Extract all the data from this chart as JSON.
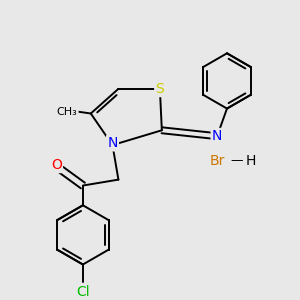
{
  "background_color": "#e8e8e8",
  "figsize": [
    3.0,
    3.0
  ],
  "dpi": 100,
  "atom_colors": {
    "S": "#cccc00",
    "N": "#0000ff",
    "O": "#ff0000",
    "Cl": "#00bb00",
    "Br": "#cc7700",
    "C": "#000000",
    "H": "#000000"
  },
  "bond_color": "#000000",
  "bond_lw": 1.4,
  "font_size": 9
}
